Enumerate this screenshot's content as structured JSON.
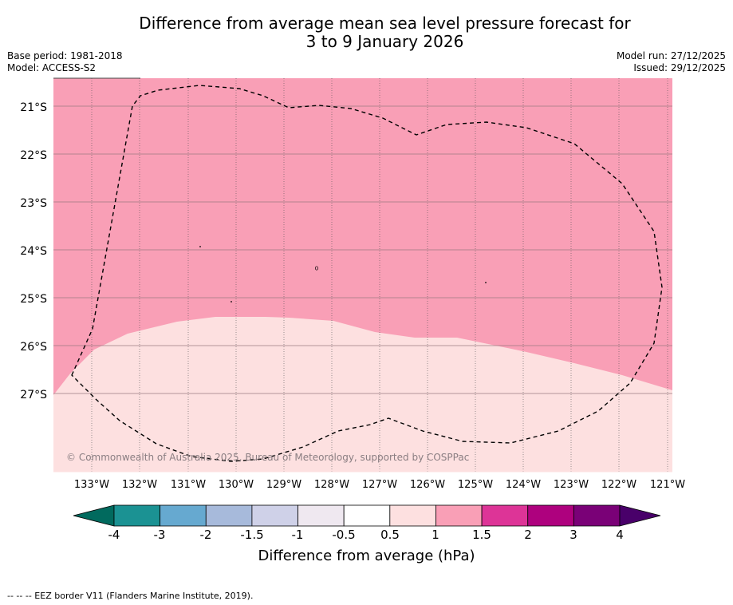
{
  "title": {
    "line1": "Difference from average mean sea level pressure forecast for",
    "line2": "3 to 9 January 2026"
  },
  "meta": {
    "base_period": "Base period: 1981-2018",
    "model": "Model: ACCESS-S2",
    "model_run": "Model run: 27/12/2025",
    "issued": "Issued: 29/12/2025"
  },
  "map": {
    "longitude_labels": [
      "133°W",
      "132°W",
      "131°W",
      "130°W",
      "129°W",
      "128°W",
      "127°W",
      "126°W",
      "125°W",
      "124°W",
      "123°W",
      "122°W",
      "121°W"
    ],
    "latitude_labels": [
      "21°S",
      "22°S",
      "23°S",
      "24°S",
      "25°S",
      "26°S",
      "27°S"
    ],
    "copyright": "© Commonwealth of Australia 2025, Bureau of Meteorology, supported by COSPPac",
    "regions": [
      {
        "name": "1 to 1.5 hPa",
        "color": "#f99fb6"
      },
      {
        "name": "0.5 to 1 hPa",
        "color": "#fde0e0"
      }
    ]
  },
  "colorbar": {
    "title": "Difference from average (hPa)",
    "ticks": [
      "-4",
      "-3",
      "-2",
      "-1.5",
      "-1",
      "-0.5",
      "0.5",
      "1",
      "1.5",
      "2",
      "3",
      "4"
    ],
    "colors": [
      "#1b9293",
      "#66a9d0",
      "#a7badb",
      "#cfd1e8",
      "#efe8f0",
      "#ffffff",
      "#fde0e0",
      "#f99fb6",
      "#dd3497",
      "#ae017e",
      "#7a0177"
    ],
    "under_color": "#016a5e",
    "over_color": "#49006a"
  },
  "footnote": "--  --  -- EEZ border V11 (Flanders Marine Institute, 2019)."
}
